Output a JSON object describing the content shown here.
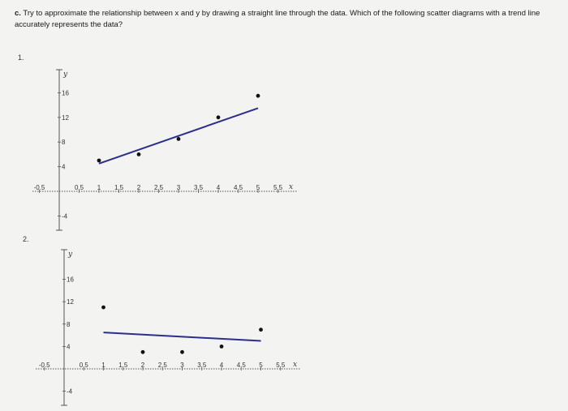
{
  "question": {
    "label": "c.",
    "text": "Try to approximate the relationship between x and y by drawing a straight line through the data. Which of the following scatter diagrams with a trend line accurately represents the data?"
  },
  "options": [
    {
      "number": "1."
    },
    {
      "number": "2."
    }
  ],
  "chart_data": [
    {
      "type": "scatter",
      "xlabel": "x",
      "ylabel": "y",
      "xlim": [
        -0.5,
        5.75
      ],
      "ylim": [
        -6,
        20
      ],
      "x_ticks": [
        "-0.5",
        "0.5",
        "1",
        "1.5",
        "2",
        "2.5",
        "3",
        "3.5",
        "4",
        "4.5",
        "5",
        "5.5"
      ],
      "y_ticks": [
        "-4",
        "4",
        "8",
        "12",
        "16"
      ],
      "points": [
        {
          "x": 1,
          "y": 5
        },
        {
          "x": 2,
          "y": 6
        },
        {
          "x": 3,
          "y": 8.5
        },
        {
          "x": 4,
          "y": 12
        },
        {
          "x": 5,
          "y": 15.5
        }
      ],
      "trend_line": {
        "x": [
          1,
          5
        ],
        "y": [
          4.5,
          13.5
        ]
      }
    },
    {
      "type": "scatter",
      "xlabel": "x",
      "ylabel": "y",
      "xlim": [
        -0.5,
        5.75
      ],
      "ylim": [
        -6,
        20
      ],
      "x_ticks": [
        "-0.5",
        "0.5",
        "1",
        "1.5",
        "2",
        "2.5",
        "3",
        "3.5",
        "4",
        "4.5",
        "5",
        "5.5"
      ],
      "y_ticks": [
        "-4",
        "4",
        "8",
        "12",
        "16"
      ],
      "points": [
        {
          "x": 1,
          "y": 11
        },
        {
          "x": 2,
          "y": 3
        },
        {
          "x": 3,
          "y": 3
        },
        {
          "x": 4,
          "y": 4
        },
        {
          "x": 5,
          "y": 7
        }
      ],
      "trend_line": {
        "x": [
          1,
          5
        ],
        "y": [
          6.5,
          5
        ]
      }
    }
  ],
  "colors": {
    "axis": "#555555",
    "point": "#111111",
    "trend": "#2b2f8c"
  }
}
